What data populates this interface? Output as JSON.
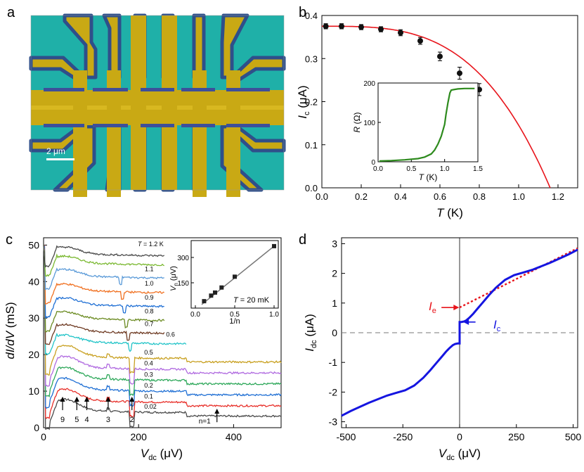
{
  "figure": {
    "panel_labels": [
      "a",
      "b",
      "c",
      "d"
    ],
    "scalebar_label": "2 μm"
  },
  "chart_data": [
    {
      "panel": "b",
      "type": "scatter",
      "xlabel_italic": "T",
      "xlabel_rest": " (K)",
      "ylabel_italic": "I",
      "ylabel_sub": "c",
      "ylabel_rest": " (μA)",
      "xlim": [
        0,
        1.3
      ],
      "ylim": [
        0,
        0.4
      ],
      "xticks": [
        0.0,
        0.2,
        0.4,
        0.6,
        0.8,
        1.0,
        1.2
      ],
      "xtick_labels": [
        "0.0",
        "0.2",
        "0.4",
        "0.6",
        "0.8",
        "1.0",
        "1.2"
      ],
      "yticks": [
        0.0,
        0.1,
        0.2,
        0.3,
        0.4
      ],
      "ytick_labels": [
        "0.0",
        "0.1",
        "0.2",
        "0.3",
        "0.4"
      ],
      "series": [
        {
          "name": "data",
          "color": "#000000",
          "x": [
            0.02,
            0.1,
            0.2,
            0.3,
            0.4,
            0.5,
            0.6,
            0.7,
            0.8
          ],
          "y": [
            0.375,
            0.375,
            0.373,
            0.368,
            0.36,
            0.341,
            0.305,
            0.266,
            0.228
          ],
          "err": [
            0.006,
            0.006,
            0.006,
            0.006,
            0.007,
            0.008,
            0.01,
            0.014,
            0.014
          ]
        },
        {
          "name": "fit",
          "color": "#e8141b",
          "Tc": 1.16,
          "I0": 0.375
        }
      ],
      "inset": {
        "xlabel_italic": "T",
        "xlabel_rest": " (K)",
        "ylabel_italic": "R",
        "ylabel_rest": " (Ω)",
        "xlim": [
          0,
          1.5
        ],
        "ylim": [
          0,
          200
        ],
        "xtick_labels": [
          "0.0",
          "0.5",
          "1.0",
          "1.5"
        ],
        "ytick_labels": [
          "0",
          "100",
          "200"
        ],
        "color": "#2e8b1e",
        "x": [
          0.02,
          0.2,
          0.4,
          0.6,
          0.7,
          0.8,
          0.85,
          0.9,
          0.95,
          1.0,
          1.02,
          1.05,
          1.08,
          1.1,
          1.13,
          1.16,
          1.2,
          1.3,
          1.45
        ],
        "y": [
          2,
          3,
          5,
          8,
          12,
          20,
          30,
          45,
          65,
          95,
          120,
          150,
          175,
          182,
          183,
          184,
          185,
          186,
          186
        ]
      }
    },
    {
      "panel": "c",
      "type": "line",
      "xlabel_italic": "V",
      "xlabel_sub": "dc",
      "xlabel_rest": " (μV)",
      "ylabel_italic": "dI/dV",
      "ylabel_rest": " (mS)",
      "xlim": [
        0,
        500
      ],
      "ylim": [
        0,
        52
      ],
      "xtick_labels": [
        "0",
        "200",
        "400"
      ],
      "ytick_labels": [
        "0",
        "10",
        "20",
        "30",
        "40",
        "50"
      ],
      "T_prefix": "T",
      "T_suffix": " = 1.2 K",
      "curves": [
        {
          "label": "0.02",
          "color": "#4a4a4a",
          "offset": 4.8,
          "extent": 500
        },
        {
          "label": "0.1",
          "color": "#e8302a",
          "offset": 7.6,
          "extent": 500
        },
        {
          "label": "0.2",
          "color": "#1f6fd4",
          "offset": 10.6,
          "extent": 500
        },
        {
          "label": "0.3",
          "color": "#2ea85a",
          "offset": 13.6,
          "extent": 500
        },
        {
          "label": "0.4",
          "color": "#b06ae0",
          "offset": 16.6,
          "extent": 500
        },
        {
          "label": "0.5",
          "color": "#c8a020",
          "offset": 19.6,
          "extent": 500
        },
        {
          "label": "0.6",
          "color": "#22c4c8",
          "offset": 23.6,
          "extent": 300
        },
        {
          "label": "0.7",
          "color": "#6e3a22",
          "offset": 26.5,
          "extent": 255
        },
        {
          "label": "0.8",
          "color": "#6a8a20",
          "offset": 30.0,
          "extent": 255
        },
        {
          "label": "0.9",
          "color": "#1f6fd4",
          "offset": 33.8,
          "extent": 255
        },
        {
          "label": "1.0",
          "color": "#f07020",
          "offset": 37.6,
          "extent": 255
        },
        {
          "label": "1.1",
          "color": "#5a9ad8",
          "offset": 41.6,
          "extent": 255
        },
        {
          "label": "",
          "color": "#7ab830",
          "offset": 45.2,
          "extent": 255
        },
        {
          "label": "",
          "color": "#4a4a4a",
          "offset": 47.7,
          "extent": 255
        }
      ],
      "arrows": [
        {
          "label": "9",
          "x": 40
        },
        {
          "label": "5",
          "x": 70
        },
        {
          "label": "4",
          "x": 91
        },
        {
          "label": "3",
          "x": 136
        },
        {
          "label": "2",
          "x": 186
        },
        {
          "label": "n=1",
          "x": 365
        }
      ],
      "inset": {
        "xlabel": "1/n",
        "ylabel_italic": "V",
        "ylabel_sub": "n",
        "ylabel_rest": " (μV)",
        "annotation_italic": "T",
        "annotation_rest": " = 20 mK",
        "xtick_labels": [
          "0.0",
          "0.5",
          "1.0"
        ],
        "ytick_labels": [
          "150",
          "300"
        ],
        "x": [
          0.111,
          0.2,
          0.25,
          0.333,
          0.5,
          1.0
        ],
        "y": [
          41,
          74,
          92,
          122,
          186,
          367
        ]
      }
    },
    {
      "panel": "d",
      "type": "line",
      "xlabel_italic": "V",
      "xlabel_sub": "dc",
      "xlabel_rest": " (μV)",
      "ylabel_italic": "I",
      "ylabel_sub": "dc",
      "ylabel_rest": " (μA)",
      "xlim": [
        -520,
        520
      ],
      "ylim": [
        -3.2,
        3.2
      ],
      "xtick_labels": [
        "-500",
        "-250",
        "0",
        "250",
        "500"
      ],
      "ytick_labels": [
        "-3",
        "-2",
        "-1",
        "0",
        "1",
        "2",
        "3"
      ],
      "Ie_label_italic": "I",
      "Ie_label_sub": "e",
      "Ic_label_italic": "I",
      "Ic_label_sub": "c",
      "iv_color": "#1515e0",
      "fit_color": "#e8141b",
      "iv_positive": {
        "x": [
          0,
          3,
          8,
          14,
          20,
          30,
          45,
          60,
          80,
          100,
          130,
          160,
          200,
          240,
          280,
          320,
          360,
          400,
          440,
          480,
          520
        ],
        "y": [
          0.36,
          0.36,
          0.36,
          0.37,
          0.38,
          0.42,
          0.52,
          0.64,
          0.82,
          1.0,
          1.27,
          1.52,
          1.78,
          1.94,
          2.03,
          2.12,
          2.24,
          2.36,
          2.5,
          2.64,
          2.8
        ]
      },
      "linear_fit": {
        "x": [
          0,
          520
        ],
        "y": [
          0.85,
          2.85
        ]
      }
    }
  ]
}
